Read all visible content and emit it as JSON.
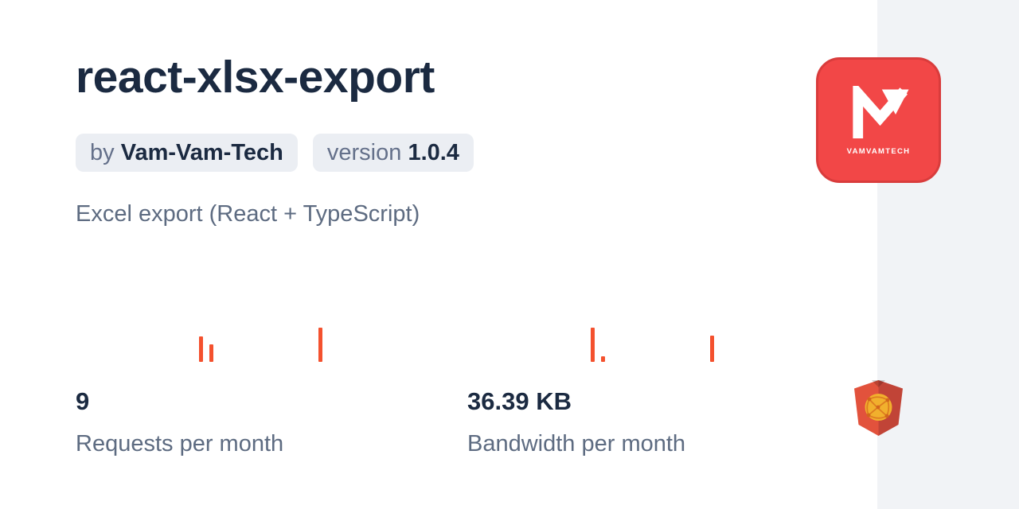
{
  "card": {
    "title": "react-xlsx-export",
    "author_badge": {
      "prefix": "by",
      "name": "Vam-Vam-Tech"
    },
    "version_badge": {
      "prefix": "version",
      "value": "1.0.4"
    },
    "description": "Excel export (React + TypeScript)"
  },
  "stats": [
    {
      "value": "9",
      "label": "Requests per month"
    },
    {
      "value": "36.39 KB",
      "label": "Bandwidth per month"
    }
  ],
  "logo_card": {
    "wordmark": "VAMVAMTECH"
  },
  "icons": {
    "publisher_mark": "n-arrow-monogram-icon",
    "bottom_right": "jsdelivr-shield-globe-icon"
  },
  "colors": {
    "background": "#ffffff",
    "side_panel": "#f1f3f6",
    "title_text": "#1b2a41",
    "muted_text": "#5d6b81",
    "badge_bg": "#ebeef3",
    "bar": "#f4512e",
    "logo_bg": "#f24747",
    "logo_border": "#d93c3c",
    "shield_left": "#e2523c",
    "shield_right": "#c14437",
    "globe": "#f1b02d"
  },
  "chart_data": [
    {
      "type": "bar",
      "id": "requests-sparkline",
      "title": "Requests per day (last 30 days)",
      "slots": 30,
      "max_value": 4,
      "bars": [
        {
          "slot": 11,
          "value": 3
        },
        {
          "slot": 12,
          "value": 2
        },
        {
          "slot": 22,
          "value": 4
        }
      ],
      "total_shown": "9"
    },
    {
      "type": "bar",
      "id": "bandwidth-sparkline",
      "title": "Bandwidth per day (last 30 days), KB",
      "slots": 30,
      "max_value": 18.9,
      "bars": [
        {
          "slot": 11,
          "value": 18.9
        },
        {
          "slot": 12,
          "value": 3.1
        },
        {
          "slot": 22,
          "value": 14.5
        }
      ],
      "total_shown": "36.39 KB"
    }
  ]
}
